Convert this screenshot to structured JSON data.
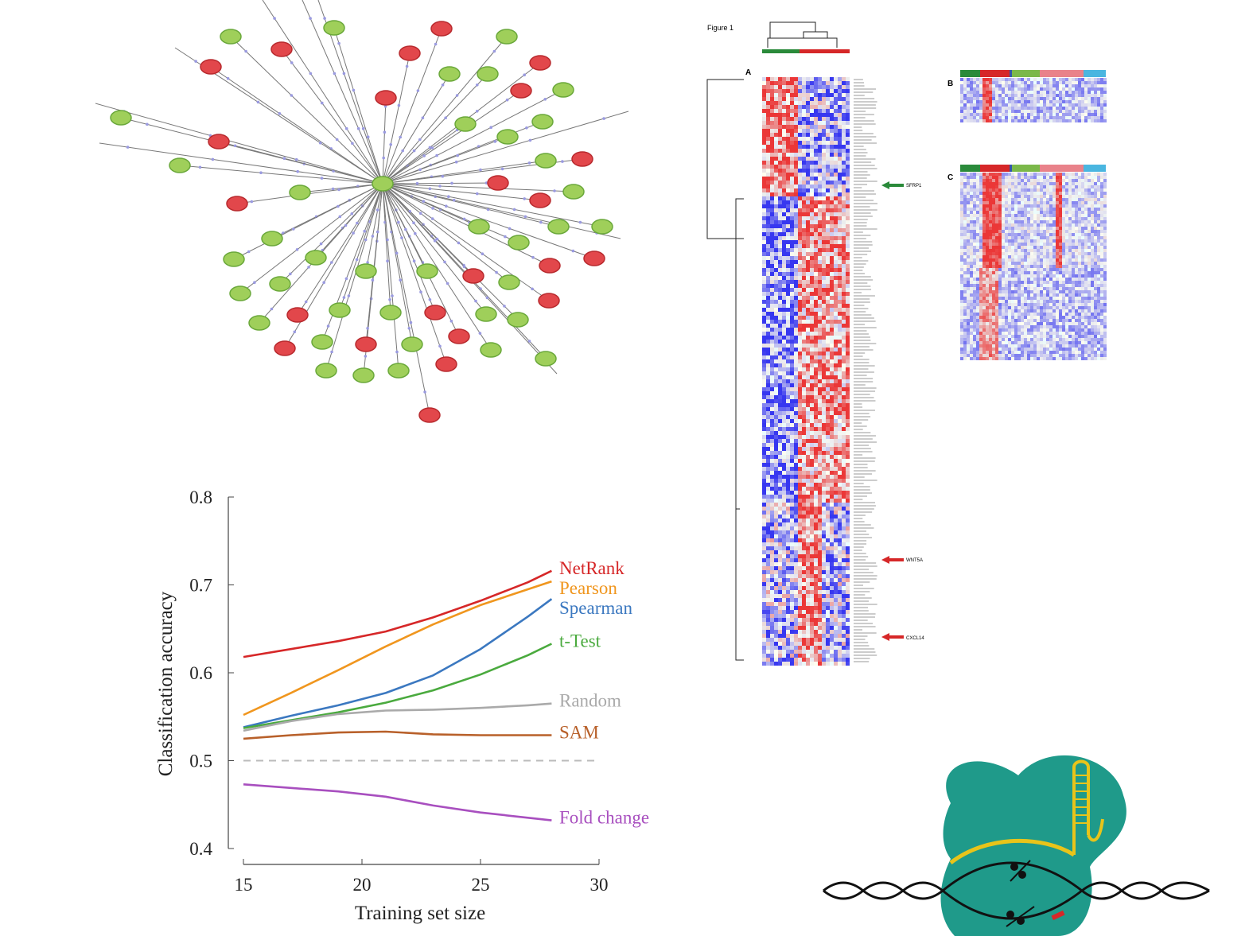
{
  "chart_data": {
    "type": "line",
    "xlabel": "Training set size",
    "ylabel": "Classification accuracy",
    "x": [
      15,
      17,
      19,
      21,
      23,
      25,
      27,
      28
    ],
    "xlim": [
      15,
      30
    ],
    "xticks": [
      15,
      20,
      25,
      30
    ],
    "ylim": [
      0.4,
      0.8
    ],
    "yticks": [
      0.4,
      0.5,
      0.6,
      0.7,
      0.8
    ],
    "hline": 0.5,
    "hline_color": "#bbbbbb",
    "series": [
      {
        "name": "NetRank",
        "color": "#d62728",
        "values": [
          0.618,
          0.627,
          0.636,
          0.647,
          0.663,
          0.682,
          0.703,
          0.716
        ]
      },
      {
        "name": "Pearson",
        "color": "#f0961e",
        "values": [
          0.552,
          0.577,
          0.603,
          0.63,
          0.655,
          0.677,
          0.695,
          0.704
        ]
      },
      {
        "name": "Spearman",
        "color": "#3b78c0",
        "values": [
          0.538,
          0.551,
          0.563,
          0.577,
          0.597,
          0.627,
          0.664,
          0.684
        ]
      },
      {
        "name": "t-Test",
        "color": "#4aaa3e",
        "values": [
          0.537,
          0.546,
          0.555,
          0.566,
          0.58,
          0.598,
          0.62,
          0.633
        ]
      },
      {
        "name": "Random",
        "color": "#aaaaaa",
        "values": [
          0.534,
          0.545,
          0.553,
          0.557,
          0.558,
          0.56,
          0.563,
          0.565
        ]
      },
      {
        "name": "SAM",
        "color": "#b8602a",
        "values": [
          0.525,
          0.529,
          0.532,
          0.533,
          0.53,
          0.529,
          0.529,
          0.529
        ]
      },
      {
        "name": "Fold change",
        "color": "#a84fbf",
        "values": [
          0.473,
          0.469,
          0.465,
          0.459,
          0.449,
          0.441,
          0.435,
          0.432
        ]
      }
    ]
  },
  "heatmap": {
    "title": "Figure 1",
    "panels": [
      "A",
      "B",
      "C"
    ],
    "genes": [
      "SFRP1",
      "WNT5A",
      "CXCL14"
    ]
  }
}
